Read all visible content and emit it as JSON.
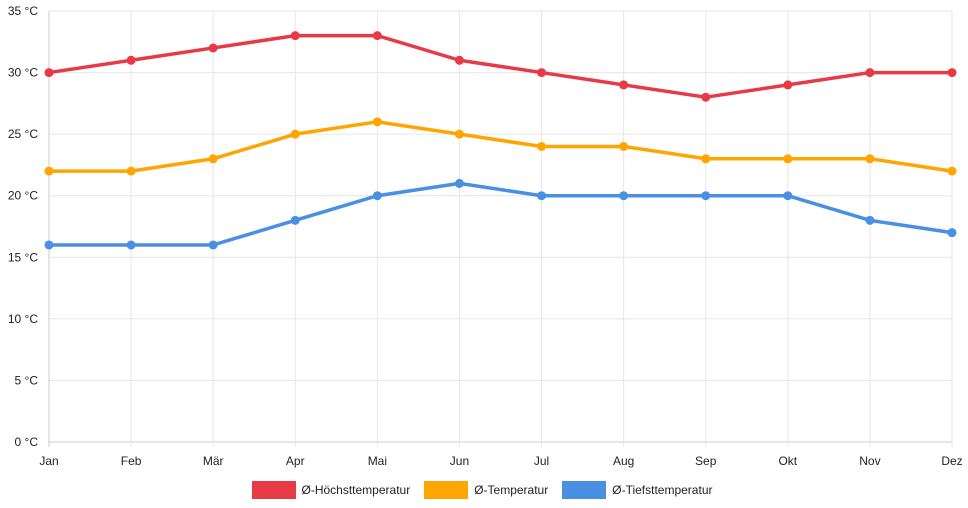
{
  "chart_data": {
    "type": "line",
    "title": "",
    "xlabel": "",
    "ylabel": "",
    "unit": "°C",
    "categories": [
      "Jan",
      "Feb",
      "Mär",
      "Apr",
      "Mai",
      "Jun",
      "Jul",
      "Aug",
      "Sep",
      "Okt",
      "Nov",
      "Dez"
    ],
    "ylim": [
      0,
      35
    ],
    "yticks": [
      0,
      5,
      10,
      15,
      20,
      25,
      30,
      35
    ],
    "ytick_labels": [
      "0 °C",
      "5 °C",
      "10 °C",
      "15 °C",
      "20 °C",
      "25 °C",
      "30 °C",
      "35 °C"
    ],
    "grid": true,
    "legend_position": "bottom",
    "series": [
      {
        "name": "Ø-Höchsttemperatur",
        "color": "#e63a46",
        "values": [
          30,
          31,
          32,
          33,
          33,
          31,
          30,
          29,
          28,
          29,
          30,
          30
        ]
      },
      {
        "name": "Ø-Temperatur",
        "color": "#ffa500",
        "values": [
          22,
          22,
          23,
          25,
          26,
          25,
          24,
          24,
          23,
          23,
          23,
          22
        ]
      },
      {
        "name": "Ø-Tiefsttemperatur",
        "color": "#4a90e2",
        "values": [
          16,
          16,
          16,
          18,
          20,
          21,
          20,
          20,
          20,
          20,
          18,
          17
        ]
      }
    ]
  }
}
